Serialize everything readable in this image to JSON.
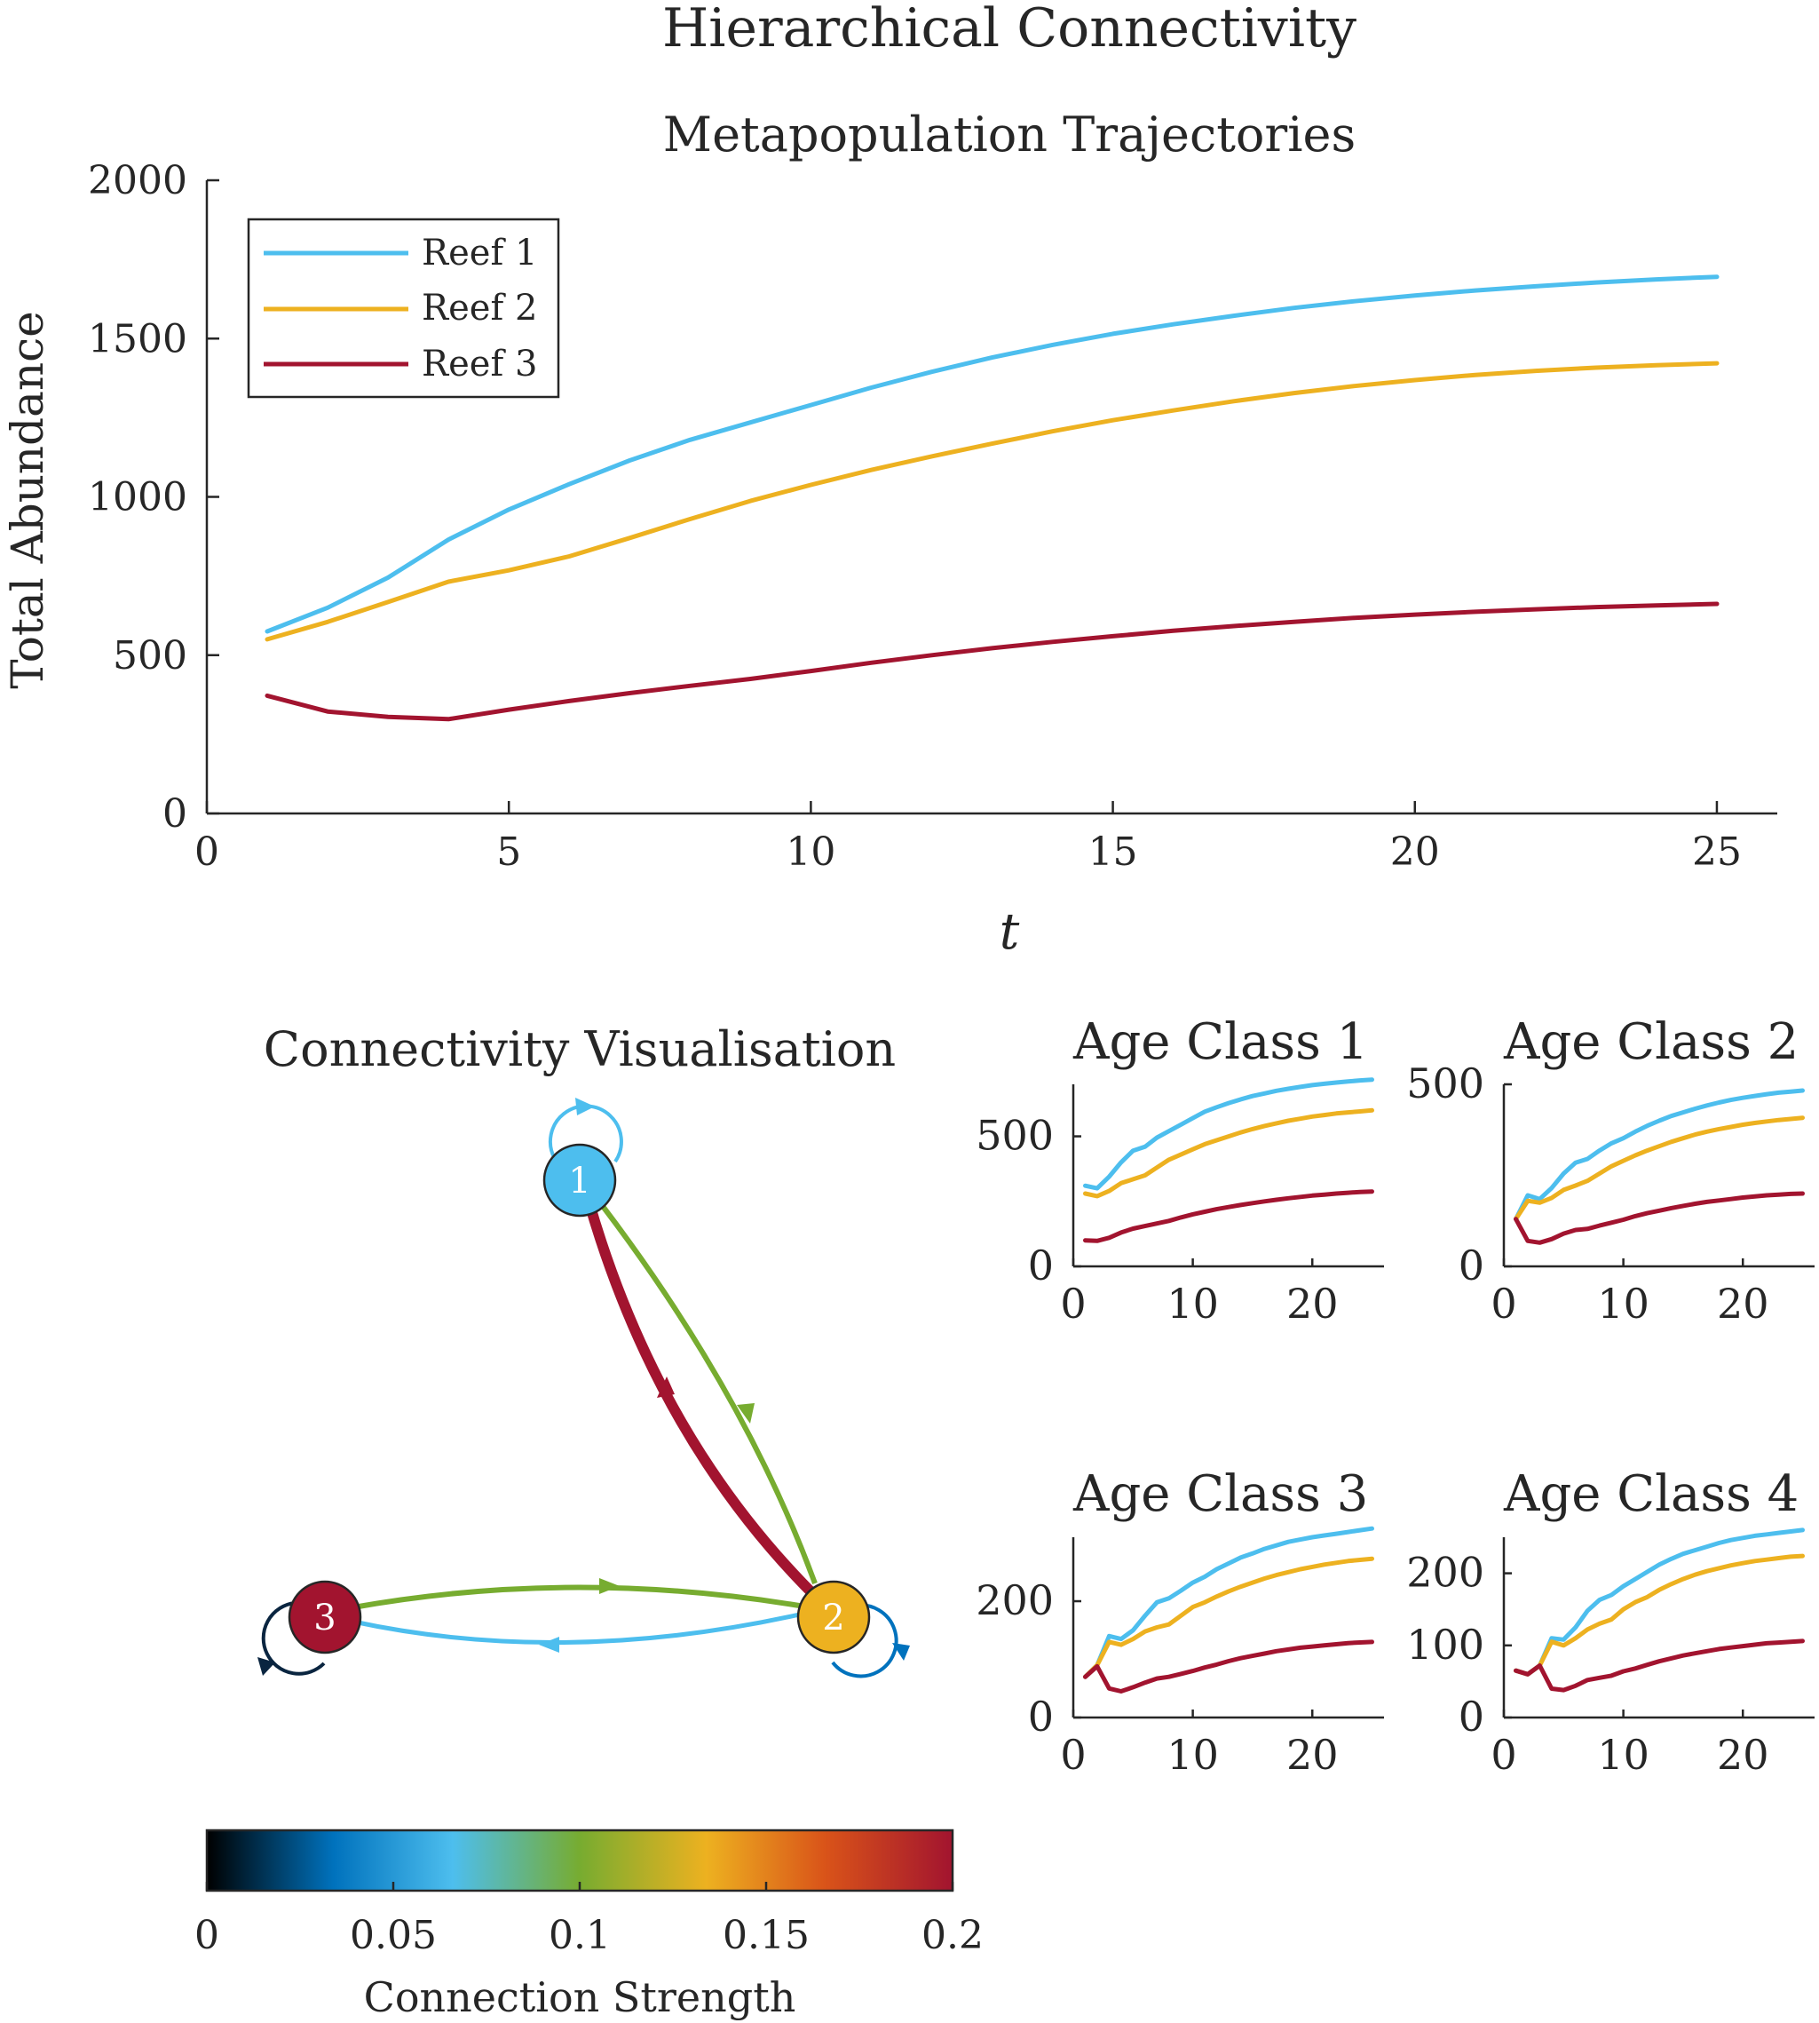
{
  "figure_title": "Hierarchical Connectivity",
  "colors": {
    "reef1": "#4DBEEE",
    "reef2": "#EDB120",
    "reef3": "#A2142F",
    "green": "#77AC30",
    "blue_dark": "#0072BD",
    "navy": "#0A2540",
    "axis": "#262626"
  },
  "chart_data": [
    {
      "id": "main",
      "type": "line",
      "title": "Metapopulation Trajectories",
      "xlabel": "t",
      "ylabel": "Total Abundance",
      "xlim": [
        0,
        26
      ],
      "ylim": [
        0,
        2000
      ],
      "xticks": [
        0,
        5,
        10,
        15,
        20,
        25
      ],
      "yticks": [
        0,
        500,
        1000,
        1500,
        2000
      ],
      "legend_position": "top-left",
      "grid": false,
      "x": [
        1,
        2,
        3,
        4,
        5,
        6,
        7,
        8,
        9,
        10,
        11,
        12,
        13,
        14,
        15,
        16,
        17,
        18,
        19,
        20,
        21,
        22,
        23,
        24,
        25
      ],
      "series": [
        {
          "name": "Reef 1",
          "color": "#4DBEEE",
          "values": [
            575,
            650,
            745,
            865,
            960,
            1040,
            1115,
            1180,
            1235,
            1290,
            1345,
            1395,
            1440,
            1480,
            1515,
            1545,
            1572,
            1597,
            1618,
            1636,
            1652,
            1665,
            1677,
            1687,
            1695
          ]
        },
        {
          "name": "Reef 2",
          "color": "#EDB120",
          "values": [
            550,
            605,
            668,
            732,
            768,
            812,
            870,
            930,
            987,
            1038,
            1085,
            1128,
            1168,
            1207,
            1242,
            1273,
            1302,
            1328,
            1350,
            1369,
            1385,
            1398,
            1408,
            1416,
            1422
          ]
        },
        {
          "name": "Reef 3",
          "color": "#A2142F",
          "values": [
            372,
            322,
            305,
            298,
            328,
            355,
            380,
            403,
            425,
            450,
            476,
            500,
            522,
            542,
            560,
            577,
            592,
            605,
            618,
            628,
            637,
            645,
            652,
            657,
            662
          ]
        }
      ]
    },
    {
      "id": "age1",
      "type": "line",
      "title": "Age Class 1",
      "xlim": [
        0,
        26
      ],
      "ylim": [
        0,
        700
      ],
      "xticks": [
        0,
        10,
        20
      ],
      "yticks": [
        0,
        500
      ],
      "grid": false,
      "x": [
        1,
        2,
        3,
        4,
        5,
        6,
        7,
        8,
        9,
        10,
        11,
        12,
        13,
        14,
        15,
        16,
        17,
        18,
        19,
        20,
        21,
        22,
        23,
        24,
        25
      ],
      "series": [
        {
          "name": "",
          "color": "#4DBEEE",
          "values": [
            310,
            300,
            345,
            400,
            445,
            460,
            495,
            520,
            545,
            570,
            595,
            612,
            628,
            642,
            655,
            665,
            675,
            683,
            690,
            697,
            702,
            707,
            711,
            715,
            718
          ]
        },
        {
          "name": "",
          "color": "#EDB120",
          "values": [
            280,
            270,
            290,
            320,
            335,
            350,
            380,
            410,
            430,
            450,
            470,
            485,
            500,
            515,
            528,
            540,
            550,
            560,
            568,
            576,
            582,
            588,
            592,
            596,
            600
          ]
        },
        {
          "name": "",
          "color": "#A2142F",
          "values": [
            100,
            98,
            110,
            130,
            145,
            155,
            165,
            175,
            188,
            200,
            210,
            220,
            228,
            236,
            243,
            250,
            256,
            262,
            267,
            272,
            276,
            280,
            283,
            286,
            288
          ]
        }
      ]
    },
    {
      "id": "age2",
      "type": "line",
      "title": "Age Class 2",
      "xlim": [
        0,
        26
      ],
      "ylim": [
        0,
        500
      ],
      "xticks": [
        0,
        10,
        20
      ],
      "yticks": [
        0,
        500
      ],
      "grid": false,
      "x": [
        1,
        2,
        3,
        4,
        5,
        6,
        7,
        8,
        9,
        10,
        11,
        12,
        13,
        14,
        15,
        16,
        17,
        18,
        19,
        20,
        21,
        22,
        23,
        24,
        25
      ],
      "series": [
        {
          "name": "",
          "color": "#4DBEEE",
          "values": [
            130,
            195,
            185,
            215,
            255,
            285,
            295,
            318,
            338,
            352,
            370,
            386,
            400,
            413,
            423,
            433,
            442,
            450,
            457,
            463,
            468,
            473,
            477,
            480,
            483
          ]
        },
        {
          "name": "",
          "color": "#EDB120",
          "values": [
            130,
            180,
            175,
            188,
            210,
            222,
            235,
            255,
            275,
            290,
            305,
            318,
            330,
            342,
            352,
            362,
            370,
            377,
            383,
            389,
            394,
            398,
            402,
            405,
            408
          ]
        },
        {
          "name": "",
          "color": "#A2142F",
          "values": [
            130,
            70,
            65,
            75,
            90,
            100,
            103,
            112,
            120,
            128,
            138,
            146,
            153,
            160,
            166,
            172,
            177,
            181,
            185,
            189,
            192,
            195,
            197,
            199,
            200
          ]
        }
      ]
    },
    {
      "id": "age3",
      "type": "line",
      "title": "Age Class 3",
      "xlim": [
        0,
        26
      ],
      "ylim": [
        0,
        310
      ],
      "xticks": [
        0,
        10,
        20
      ],
      "yticks": [
        0,
        200
      ],
      "grid": false,
      "x": [
        1,
        2,
        3,
        4,
        5,
        6,
        7,
        8,
        9,
        10,
        11,
        12,
        13,
        14,
        15,
        16,
        17,
        18,
        19,
        20,
        21,
        22,
        23,
        24,
        25
      ],
      "series": [
        {
          "name": "",
          "color": "#4DBEEE",
          "values": [
            70,
            90,
            140,
            135,
            150,
            175,
            198,
            205,
            218,
            232,
            242,
            255,
            265,
            275,
            282,
            290,
            296,
            302,
            306,
            310,
            313,
            316,
            319,
            322,
            325
          ]
        },
        {
          "name": "",
          "color": "#EDB120",
          "values": [
            70,
            90,
            130,
            125,
            135,
            148,
            155,
            160,
            175,
            190,
            198,
            208,
            217,
            225,
            232,
            239,
            245,
            250,
            255,
            259,
            263,
            266,
            269,
            271,
            273
          ]
        },
        {
          "name": "",
          "color": "#A2142F",
          "values": [
            70,
            88,
            50,
            45,
            52,
            60,
            67,
            70,
            75,
            80,
            86,
            91,
            97,
            102,
            106,
            110,
            114,
            117,
            120,
            122,
            124,
            126,
            128,
            129,
            130
          ]
        }
      ]
    },
    {
      "id": "age4",
      "type": "line",
      "title": "Age Class 4",
      "xlim": [
        0,
        26
      ],
      "ylim": [
        0,
        250
      ],
      "xticks": [
        0,
        10,
        20
      ],
      "yticks": [
        0,
        100,
        200
      ],
      "grid": false,
      "x": [
        1,
        2,
        3,
        4,
        5,
        6,
        7,
        8,
        9,
        10,
        11,
        12,
        13,
        14,
        15,
        16,
        17,
        18,
        19,
        20,
        21,
        22,
        23,
        24,
        25
      ],
      "series": [
        {
          "name": "",
          "color": "#4DBEEE",
          "values": [
            65,
            60,
            72,
            110,
            108,
            125,
            148,
            163,
            170,
            182,
            192,
            202,
            212,
            220,
            227,
            232,
            237,
            242,
            246,
            249,
            252,
            254,
            256,
            258,
            260
          ]
        },
        {
          "name": "",
          "color": "#EDB120",
          "values": [
            65,
            60,
            72,
            105,
            100,
            110,
            122,
            130,
            136,
            150,
            160,
            167,
            177,
            185,
            192,
            198,
            203,
            207,
            211,
            214,
            217,
            219,
            221,
            223,
            224
          ]
        },
        {
          "name": "",
          "color": "#A2142F",
          "values": [
            65,
            60,
            72,
            40,
            38,
            44,
            52,
            55,
            58,
            64,
            68,
            73,
            78,
            82,
            86,
            89,
            92,
            95,
            97,
            99,
            101,
            103,
            104,
            105,
            106
          ]
        }
      ]
    }
  ],
  "network": {
    "title": "Connectivity Visualisation",
    "nodes": [
      {
        "label": "1",
        "color": "#4DBEEE"
      },
      {
        "label": "2",
        "color": "#EDB120"
      },
      {
        "label": "3",
        "color": "#A2142F"
      }
    ]
  },
  "colorbar": {
    "label": "Connection Strength",
    "ticks": [
      "0",
      "0.05",
      "0.1",
      "0.15",
      "0.2"
    ],
    "stops": [
      "#000000",
      "#0072BD",
      "#4DBEEE",
      "#77AC30",
      "#EDB120",
      "#D95319",
      "#A2142F"
    ]
  }
}
